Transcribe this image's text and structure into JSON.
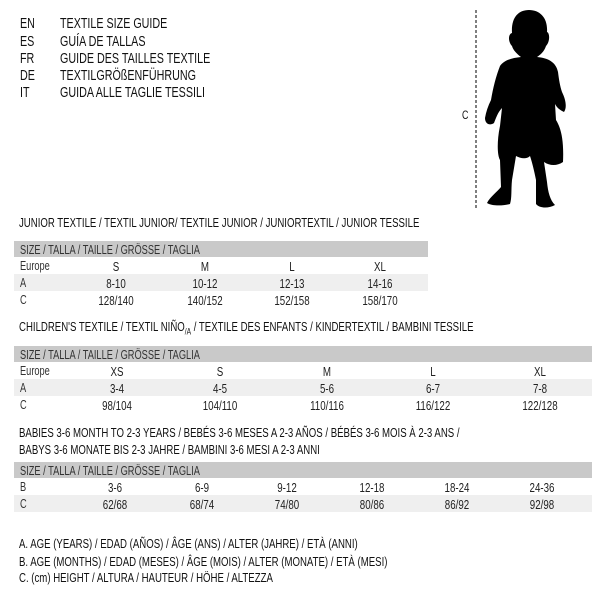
{
  "header": {
    "languages": [
      {
        "code": "EN",
        "title": "TEXTILE SIZE GUIDE"
      },
      {
        "code": "ES",
        "title": "GUÍA DE TALLAS"
      },
      {
        "code": "FR",
        "title": "GUIDE DES TAILLES TEXTILE"
      },
      {
        "code": "DE",
        "title": "TEXTILGRÖßENFÜHRUNG"
      },
      {
        "code": "IT",
        "title": "GUIDA ALLE TAGLIE TESSILI"
      }
    ]
  },
  "figure": {
    "measure_label": "C",
    "icon": "baby-silhouette-icon"
  },
  "tables": [
    {
      "title": "JUNIOR TEXTILE / TEXTIL JUNIOR/ TEXTILE JUNIOR / JUNIORTEXTIL / JUNIOR TESSILE",
      "header": "SIZE / TALLA / TAILLE / GRÖSSE / TAGLIA",
      "rows": [
        {
          "label": "Europe",
          "values": [
            "S",
            "M",
            "L",
            "XL"
          ]
        },
        {
          "label": "A",
          "values": [
            "8-10",
            "10-12",
            "12-13",
            "14-16"
          ]
        },
        {
          "label": "C",
          "values": [
            "128/140",
            "140/152",
            "152/158",
            "158/170"
          ]
        }
      ]
    },
    {
      "title": "CHILDREN'S TEXTILE / TEXTIL NIÑO",
      "title_sub": "/A",
      "title_rest": " / TEXTILE DES ENFANTS / KINDERTEXTIL / BAMBINI TESSILE",
      "header": "SIZE / TALLA / TAILLE / GRÖSSE / TAGLIA",
      "rows": [
        {
          "label": "Europe",
          "values": [
            "XS",
            "S",
            "M",
            "L",
            "XL"
          ]
        },
        {
          "label": "A",
          "values": [
            "3-4",
            "4-5",
            "5-6",
            "6-7",
            "7-8"
          ]
        },
        {
          "label": "C",
          "values": [
            "98/104",
            "104/110",
            "110/116",
            "116/122",
            "122/128"
          ]
        }
      ]
    },
    {
      "title": "BABIES 3-6 MONTH TO 2-3 YEARS / BEBÉS 3-6 MESES A 2-3 AÑOS / BÉBÉS 3-6 MOIS À 2-3 ANS /",
      "title_line2": "BABYS 3-6 MONATE BIS 2-3 JAHRE / BAMBINI 3-6 MESI A 2-3 ANNI",
      "header": "SIZE / TALLA / TAILLE / GRÖSSE / TAGLIA",
      "rows": [
        {
          "label": "B",
          "values": [
            "3-6",
            "6-9",
            "9-12",
            "12-18",
            "18-24",
            "24-36"
          ]
        },
        {
          "label": "C",
          "values": [
            "62/68",
            "68/74",
            "74/80",
            "80/86",
            "86/92",
            "92/98"
          ]
        }
      ]
    }
  ],
  "legend": [
    "A. AGE (YEARS) / EDAD (AÑOS) / ÂGE (ANS) / ALTER (JAHRE) / ETÀ (ANNI)",
    "B. AGE (MONTHS) / EDAD (MESES) / ÂGE (MOIS) / ALTER (MONATE) / ETÀ (MESI)",
    "C. (cm) HEIGHT / ALTURA / HAUTEUR / HÖHE / ALTEZZA"
  ],
  "colors": {
    "header_bg": "#c9c9c9",
    "alt_row_bg": "#efefef"
  }
}
